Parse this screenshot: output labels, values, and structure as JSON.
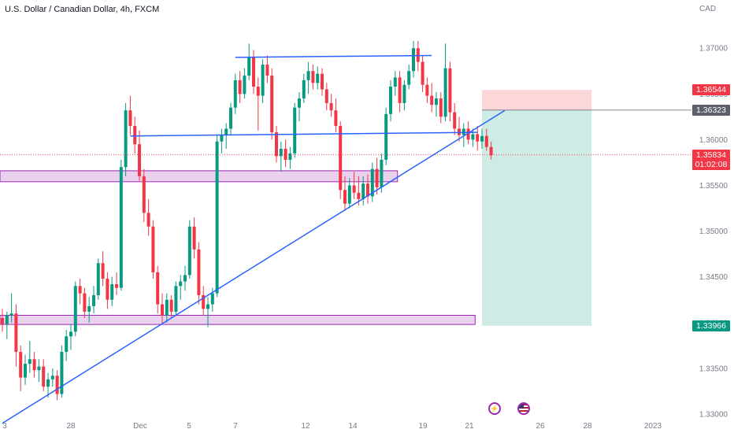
{
  "header": {
    "title": "U.S. Dollar / Canadian Dollar, 4h, FXCM",
    "currency": "CAD"
  },
  "price_tags": [
    {
      "label": "1.36544",
      "price": 1.36544,
      "color": "#f23645"
    },
    {
      "label": "1.36323",
      "price": 1.36323,
      "color": "#5d606b"
    },
    {
      "label": "1.35834",
      "sub": "01:02:08",
      "price": 1.35834,
      "color": "#f23645"
    },
    {
      "label": "1.33966",
      "price": 1.33966,
      "color": "#089981"
    }
  ],
  "events": [
    {
      "name": "lightning-event-icon",
      "glyph": "⚡",
      "color": "#9c27b0"
    },
    {
      "name": "us-flag-event-icon",
      "glyph": "",
      "color": "#b22234"
    }
  ],
  "chart_data": {
    "type": "candlestick",
    "y_ticks": [
      1.37,
      1.365,
      1.36,
      1.355,
      1.35,
      1.345,
      1.34,
      1.335,
      1.33
    ],
    "y_tick_labels": [
      "1.37000",
      "1.36500",
      "1.36000",
      "1.35500",
      "1.35000",
      "1.34500",
      "1.34000",
      "1.33500",
      "1.33000"
    ],
    "ylim": [
      1.32845,
      1.37475
    ],
    "x_tick_labels": [
      "3",
      "28",
      "Dec",
      "5",
      "7",
      "12",
      "14",
      "19",
      "21",
      "26",
      "28",
      "2023"
    ],
    "colors": {
      "up": "#089981",
      "down": "#f23645",
      "lines": "#2962ff",
      "zone_fill": "#e1bee7",
      "zone_border": "#9c27b0"
    },
    "candles": [
      [
        1.3405,
        1.3415,
        1.339,
        1.3398
      ],
      [
        1.3398,
        1.3412,
        1.3382,
        1.3408
      ],
      [
        1.3408,
        1.3432,
        1.34,
        1.341
      ],
      [
        1.341,
        1.342,
        1.3352,
        1.3368
      ],
      [
        1.3368,
        1.3375,
        1.3325,
        1.334
      ],
      [
        1.334,
        1.3365,
        1.3332,
        1.3355
      ],
      [
        1.3355,
        1.338,
        1.3345,
        1.336
      ],
      [
        1.336,
        1.3368,
        1.334,
        1.3348
      ],
      [
        1.3348,
        1.336,
        1.3335,
        1.3352
      ],
      [
        1.3352,
        1.336,
        1.3325,
        1.333
      ],
      [
        1.333,
        1.3345,
        1.3318,
        1.3338
      ],
      [
        1.3338,
        1.335,
        1.333,
        1.3342
      ],
      [
        1.3342,
        1.3348,
        1.3315,
        1.3322
      ],
      [
        1.3322,
        1.3375,
        1.3318,
        1.3368
      ],
      [
        1.3368,
        1.3392,
        1.3358,
        1.3385
      ],
      [
        1.3385,
        1.3398,
        1.337,
        1.339
      ],
      [
        1.339,
        1.3445,
        1.3385,
        1.344
      ],
      [
        1.344,
        1.3448,
        1.342,
        1.3432
      ],
      [
        1.3432,
        1.3438,
        1.3405,
        1.3412
      ],
      [
        1.3412,
        1.3428,
        1.34,
        1.3418
      ],
      [
        1.3418,
        1.344,
        1.341,
        1.343
      ],
      [
        1.343,
        1.347,
        1.3425,
        1.3465
      ],
      [
        1.3465,
        1.3478,
        1.344,
        1.3448
      ],
      [
        1.3448,
        1.3455,
        1.3415,
        1.3425
      ],
      [
        1.3425,
        1.345,
        1.3418,
        1.3442
      ],
      [
        1.3442,
        1.3455,
        1.343,
        1.3438
      ],
      [
        1.3438,
        1.3578,
        1.3435,
        1.357
      ],
      [
        1.357,
        1.364,
        1.356,
        1.3632
      ],
      [
        1.3632,
        1.3648,
        1.3605,
        1.3615
      ],
      [
        1.3615,
        1.3625,
        1.3585,
        1.3595
      ],
      [
        1.3595,
        1.361,
        1.3555,
        1.356
      ],
      [
        1.356,
        1.3568,
        1.351,
        1.352
      ],
      [
        1.352,
        1.3535,
        1.3495,
        1.3505
      ],
      [
        1.3505,
        1.3512,
        1.3448,
        1.3455
      ],
      [
        1.3455,
        1.3462,
        1.341,
        1.342
      ],
      [
        1.342,
        1.3432,
        1.3398,
        1.3408
      ],
      [
        1.3408,
        1.3432,
        1.34,
        1.3425
      ],
      [
        1.3425,
        1.343,
        1.3405,
        1.3412
      ],
      [
        1.3412,
        1.3445,
        1.3408,
        1.344
      ],
      [
        1.344,
        1.3452,
        1.3425,
        1.3445
      ],
      [
        1.3445,
        1.3462,
        1.3435,
        1.3452
      ],
      [
        1.3452,
        1.3512,
        1.3448,
        1.3505
      ],
      [
        1.3505,
        1.3515,
        1.347,
        1.348
      ],
      [
        1.348,
        1.3488,
        1.342,
        1.343
      ],
      [
        1.343,
        1.344,
        1.3408,
        1.3415
      ],
      [
        1.3415,
        1.3428,
        1.3395,
        1.342
      ],
      [
        1.342,
        1.3438,
        1.3412,
        1.3432
      ],
      [
        1.3432,
        1.3605,
        1.3428,
        1.3598
      ],
      [
        1.3598,
        1.3612,
        1.3585,
        1.3605
      ],
      [
        1.3605,
        1.3618,
        1.359,
        1.3612
      ],
      [
        1.3612,
        1.364,
        1.3605,
        1.3635
      ],
      [
        1.3635,
        1.3672,
        1.3628,
        1.3665
      ],
      [
        1.3665,
        1.3675,
        1.364,
        1.365
      ],
      [
        1.365,
        1.3678,
        1.3645,
        1.367
      ],
      [
        1.367,
        1.3705,
        1.3665,
        1.369
      ],
      [
        1.369,
        1.3698,
        1.365,
        1.3658
      ],
      [
        1.3658,
        1.3668,
        1.361,
        1.3648
      ],
      [
        1.3648,
        1.3688,
        1.364,
        1.3682
      ],
      [
        1.3682,
        1.3692,
        1.3662,
        1.367
      ],
      [
        1.367,
        1.3678,
        1.36,
        1.3608
      ],
      [
        1.3608,
        1.3615,
        1.3575,
        1.3582
      ],
      [
        1.3582,
        1.3598,
        1.3565,
        1.359
      ],
      [
        1.359,
        1.36,
        1.357,
        1.3578
      ],
      [
        1.3578,
        1.3592,
        1.3568,
        1.3585
      ],
      [
        1.3585,
        1.364,
        1.358,
        1.3635
      ],
      [
        1.3635,
        1.3652,
        1.362,
        1.3645
      ],
      [
        1.3645,
        1.3672,
        1.364,
        1.3665
      ],
      [
        1.3665,
        1.3685,
        1.365,
        1.3675
      ],
      [
        1.3675,
        1.3682,
        1.3655,
        1.3662
      ],
      [
        1.3662,
        1.368,
        1.3655,
        1.3672
      ],
      [
        1.3672,
        1.3678,
        1.3648,
        1.3655
      ],
      [
        1.3655,
        1.3662,
        1.3632,
        1.364
      ],
      [
        1.364,
        1.365,
        1.3625,
        1.3632
      ],
      [
        1.3632,
        1.3645,
        1.3608,
        1.3615
      ],
      [
        1.3615,
        1.362,
        1.3535,
        1.3545
      ],
      [
        1.3545,
        1.356,
        1.3522,
        1.353
      ],
      [
        1.353,
        1.3558,
        1.3525,
        1.355
      ],
      [
        1.355,
        1.3565,
        1.3535,
        1.3542
      ],
      [
        1.3542,
        1.356,
        1.3528,
        1.3535
      ],
      [
        1.3535,
        1.356,
        1.3528,
        1.3552
      ],
      [
        1.3552,
        1.3562,
        1.353,
        1.3538
      ],
      [
        1.3538,
        1.3575,
        1.3532,
        1.3568
      ],
      [
        1.3568,
        1.358,
        1.354,
        1.3548
      ],
      [
        1.3548,
        1.3585,
        1.3542,
        1.3578
      ],
      [
        1.3578,
        1.3635,
        1.3572,
        1.3628
      ],
      [
        1.3628,
        1.3665,
        1.362,
        1.3658
      ],
      [
        1.3658,
        1.3675,
        1.3648,
        1.3668
      ],
      [
        1.3668,
        1.3675,
        1.363,
        1.364
      ],
      [
        1.364,
        1.3665,
        1.3632,
        1.366
      ],
      [
        1.366,
        1.3682,
        1.3655,
        1.3675
      ],
      [
        1.3675,
        1.3708,
        1.3668,
        1.37
      ],
      [
        1.37,
        1.3708,
        1.3675,
        1.3685
      ],
      [
        1.3685,
        1.3692,
        1.3652,
        1.366
      ],
      [
        1.366,
        1.3668,
        1.364,
        1.3648
      ],
      [
        1.3648,
        1.3662,
        1.363,
        1.3638
      ],
      [
        1.3638,
        1.3652,
        1.3625,
        1.3645
      ],
      [
        1.3645,
        1.3652,
        1.3618,
        1.3625
      ],
      [
        1.3625,
        1.3705,
        1.362,
        1.3678
      ],
      [
        1.3678,
        1.3685,
        1.362,
        1.363
      ],
      [
        1.363,
        1.364,
        1.3605,
        1.3612
      ],
      [
        1.3612,
        1.3625,
        1.3598,
        1.3605
      ],
      [
        1.3605,
        1.3618,
        1.3592,
        1.3612
      ],
      [
        1.3612,
        1.362,
        1.3595,
        1.36
      ],
      [
        1.36,
        1.3612,
        1.3592,
        1.3606
      ],
      [
        1.3606,
        1.3615,
        1.3588,
        1.3598
      ],
      [
        1.3598,
        1.3612,
        1.359,
        1.3604
      ],
      [
        1.3604,
        1.3612,
        1.3588,
        1.3592
      ],
      [
        1.3592,
        1.3598,
        1.3578,
        1.3583
      ]
    ],
    "trendlines": [
      {
        "name": "ascending-trendline",
        "from": [
          0,
          1.329
        ],
        "to": [
          110,
          1.3632
        ]
      },
      {
        "name": "upper-resistance-line",
        "from": [
          51,
          1.369
        ],
        "to": [
          94,
          1.3692
        ]
      },
      {
        "name": "neckline",
        "from": [
          28,
          1.3604
        ],
        "to": [
          104,
          1.3608
        ]
      }
    ],
    "zones": [
      {
        "name": "upper-support-zone",
        "x0": -2,
        "x1": 86.5,
        "y0": 1.3554,
        "y1": 1.3566
      },
      {
        "name": "lower-support-zone",
        "x0": -2,
        "x1": 103.5,
        "y0": 1.3398,
        "y1": 1.3408
      }
    ],
    "position": {
      "name": "short-position",
      "x0": 105,
      "x1": 129,
      "entry": 1.36323,
      "stop": 1.36544,
      "target": 1.33966
    }
  }
}
